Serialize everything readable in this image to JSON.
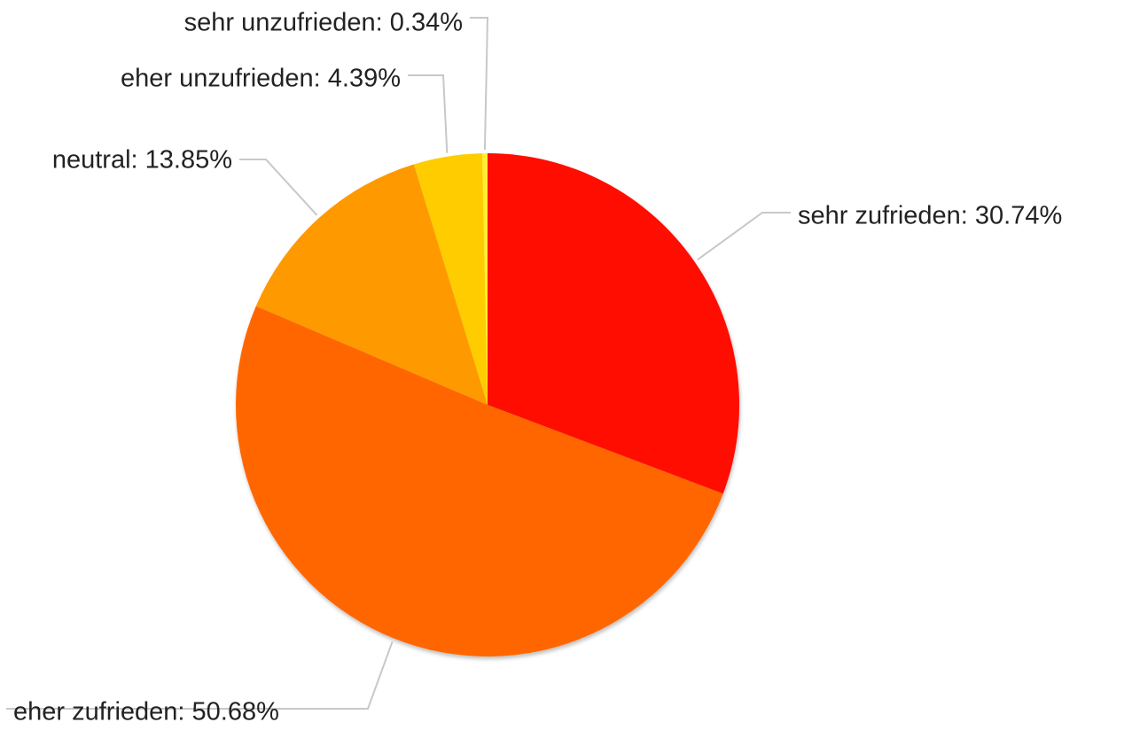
{
  "chart_data": {
    "type": "pie",
    "values": [
      30.74,
      50.68,
      13.85,
      4.39,
      0.34
    ],
    "value_labels": [
      "sehr zufrieden: 30.74%",
      "eher zufrieden: 50.68%",
      "neutral: 13.85%",
      "eher unzufrieden: 4.39%",
      "sehr unzufrieden: 0.34%"
    ],
    "colors": [
      "#ff1100",
      "#ff6600",
      "#ff9900",
      "#ffcc00",
      "#ffee33"
    ]
  }
}
